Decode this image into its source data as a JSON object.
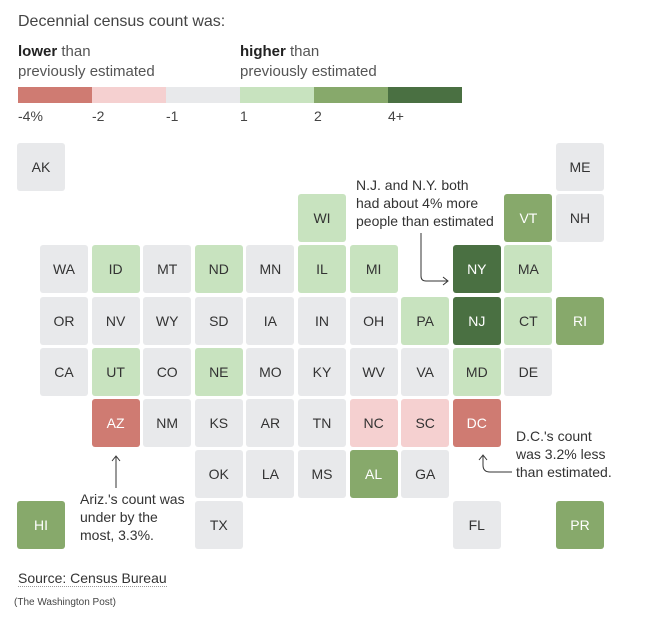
{
  "title": "Decennial census count was:",
  "legend": {
    "lower_bold": "lower",
    "lower_rest": " than",
    "lower_line2": "previously estimated",
    "higher_bold": "higher",
    "higher_rest": " than",
    "higher_line2": "previously estimated",
    "ticks": [
      "-4%",
      "-2",
      "-1",
      "1",
      "2",
      "4+"
    ],
    "colors": [
      "#cf7b72",
      "#f5d0d0",
      "#e8e9eb",
      "#c8e3bf",
      "#87a96b",
      "#4a7042"
    ]
  },
  "categories": {
    "red": "#cf7b72",
    "pink": "#f5d0d0",
    "gray": "#e8e9eb",
    "lightgreen": "#c8e3bf",
    "green": "#87a96b",
    "darkgreen": "#4a7042"
  },
  "states": [
    {
      "abbr": "AK",
      "col": -0.45,
      "row": 0,
      "cat": "gray"
    },
    {
      "abbr": "ME",
      "col": 10,
      "row": 0,
      "cat": "gray"
    },
    {
      "abbr": "WI",
      "col": 5,
      "row": 1,
      "cat": "lightgreen"
    },
    {
      "abbr": "VT",
      "col": 9,
      "row": 1,
      "cat": "green"
    },
    {
      "abbr": "NH",
      "col": 10,
      "row": 1,
      "cat": "gray"
    },
    {
      "abbr": "WA",
      "col": 0,
      "row": 2,
      "cat": "gray"
    },
    {
      "abbr": "ID",
      "col": 1,
      "row": 2,
      "cat": "lightgreen"
    },
    {
      "abbr": "MT",
      "col": 2,
      "row": 2,
      "cat": "gray"
    },
    {
      "abbr": "ND",
      "col": 3,
      "row": 2,
      "cat": "lightgreen"
    },
    {
      "abbr": "MN",
      "col": 4,
      "row": 2,
      "cat": "gray"
    },
    {
      "abbr": "IL",
      "col": 5,
      "row": 2,
      "cat": "lightgreen"
    },
    {
      "abbr": "MI",
      "col": 6,
      "row": 2,
      "cat": "lightgreen"
    },
    {
      "abbr": "NY",
      "col": 8,
      "row": 2,
      "cat": "darkgreen"
    },
    {
      "abbr": "MA",
      "col": 9,
      "row": 2,
      "cat": "lightgreen"
    },
    {
      "abbr": "OR",
      "col": 0,
      "row": 3,
      "cat": "gray"
    },
    {
      "abbr": "NV",
      "col": 1,
      "row": 3,
      "cat": "gray"
    },
    {
      "abbr": "WY",
      "col": 2,
      "row": 3,
      "cat": "gray"
    },
    {
      "abbr": "SD",
      "col": 3,
      "row": 3,
      "cat": "gray"
    },
    {
      "abbr": "IA",
      "col": 4,
      "row": 3,
      "cat": "gray"
    },
    {
      "abbr": "IN",
      "col": 5,
      "row": 3,
      "cat": "gray"
    },
    {
      "abbr": "OH",
      "col": 6,
      "row": 3,
      "cat": "gray"
    },
    {
      "abbr": "PA",
      "col": 7,
      "row": 3,
      "cat": "lightgreen"
    },
    {
      "abbr": "NJ",
      "col": 8,
      "row": 3,
      "cat": "darkgreen"
    },
    {
      "abbr": "CT",
      "col": 9,
      "row": 3,
      "cat": "lightgreen"
    },
    {
      "abbr": "RI",
      "col": 10,
      "row": 3,
      "cat": "green"
    },
    {
      "abbr": "CA",
      "col": 0,
      "row": 4,
      "cat": "gray"
    },
    {
      "abbr": "UT",
      "col": 1,
      "row": 4,
      "cat": "lightgreen"
    },
    {
      "abbr": "CO",
      "col": 2,
      "row": 4,
      "cat": "gray"
    },
    {
      "abbr": "NE",
      "col": 3,
      "row": 4,
      "cat": "lightgreen"
    },
    {
      "abbr": "MO",
      "col": 4,
      "row": 4,
      "cat": "gray"
    },
    {
      "abbr": "KY",
      "col": 5,
      "row": 4,
      "cat": "gray"
    },
    {
      "abbr": "WV",
      "col": 6,
      "row": 4,
      "cat": "gray"
    },
    {
      "abbr": "VA",
      "col": 7,
      "row": 4,
      "cat": "gray"
    },
    {
      "abbr": "MD",
      "col": 8,
      "row": 4,
      "cat": "lightgreen"
    },
    {
      "abbr": "DE",
      "col": 9,
      "row": 4,
      "cat": "gray"
    },
    {
      "abbr": "AZ",
      "col": 1,
      "row": 5,
      "cat": "red"
    },
    {
      "abbr": "NM",
      "col": 2,
      "row": 5,
      "cat": "gray"
    },
    {
      "abbr": "KS",
      "col": 3,
      "row": 5,
      "cat": "gray"
    },
    {
      "abbr": "AR",
      "col": 4,
      "row": 5,
      "cat": "gray"
    },
    {
      "abbr": "TN",
      "col": 5,
      "row": 5,
      "cat": "gray"
    },
    {
      "abbr": "NC",
      "col": 6,
      "row": 5,
      "cat": "pink"
    },
    {
      "abbr": "SC",
      "col": 7,
      "row": 5,
      "cat": "pink"
    },
    {
      "abbr": "DC",
      "col": 8,
      "row": 5,
      "cat": "red"
    },
    {
      "abbr": "OK",
      "col": 3,
      "row": 6,
      "cat": "gray"
    },
    {
      "abbr": "LA",
      "col": 4,
      "row": 6,
      "cat": "gray"
    },
    {
      "abbr": "MS",
      "col": 5,
      "row": 6,
      "cat": "gray"
    },
    {
      "abbr": "AL",
      "col": 6,
      "row": 6,
      "cat": "green"
    },
    {
      "abbr": "GA",
      "col": 7,
      "row": 6,
      "cat": "gray"
    },
    {
      "abbr": "HI",
      "col": -0.45,
      "row": 7,
      "cat": "green"
    },
    {
      "abbr": "TX",
      "col": 3,
      "row": 7,
      "cat": "gray"
    },
    {
      "abbr": "FL",
      "col": 8,
      "row": 7,
      "cat": "gray"
    },
    {
      "abbr": "PR",
      "col": 10,
      "row": 7,
      "cat": "green"
    }
  ],
  "annotations": {
    "ny_nj": [
      "N.J. and N.Y. both",
      "had about 4% more",
      "people than estimated"
    ],
    "az": [
      "Ariz.'s count was",
      "under by the",
      "most, 3.3%."
    ],
    "dc": [
      "D.C.'s count",
      "was 3.2% less",
      "than estimated."
    ]
  },
  "source": "Source: Census Bureau",
  "credit": "(The Washington Post)"
}
